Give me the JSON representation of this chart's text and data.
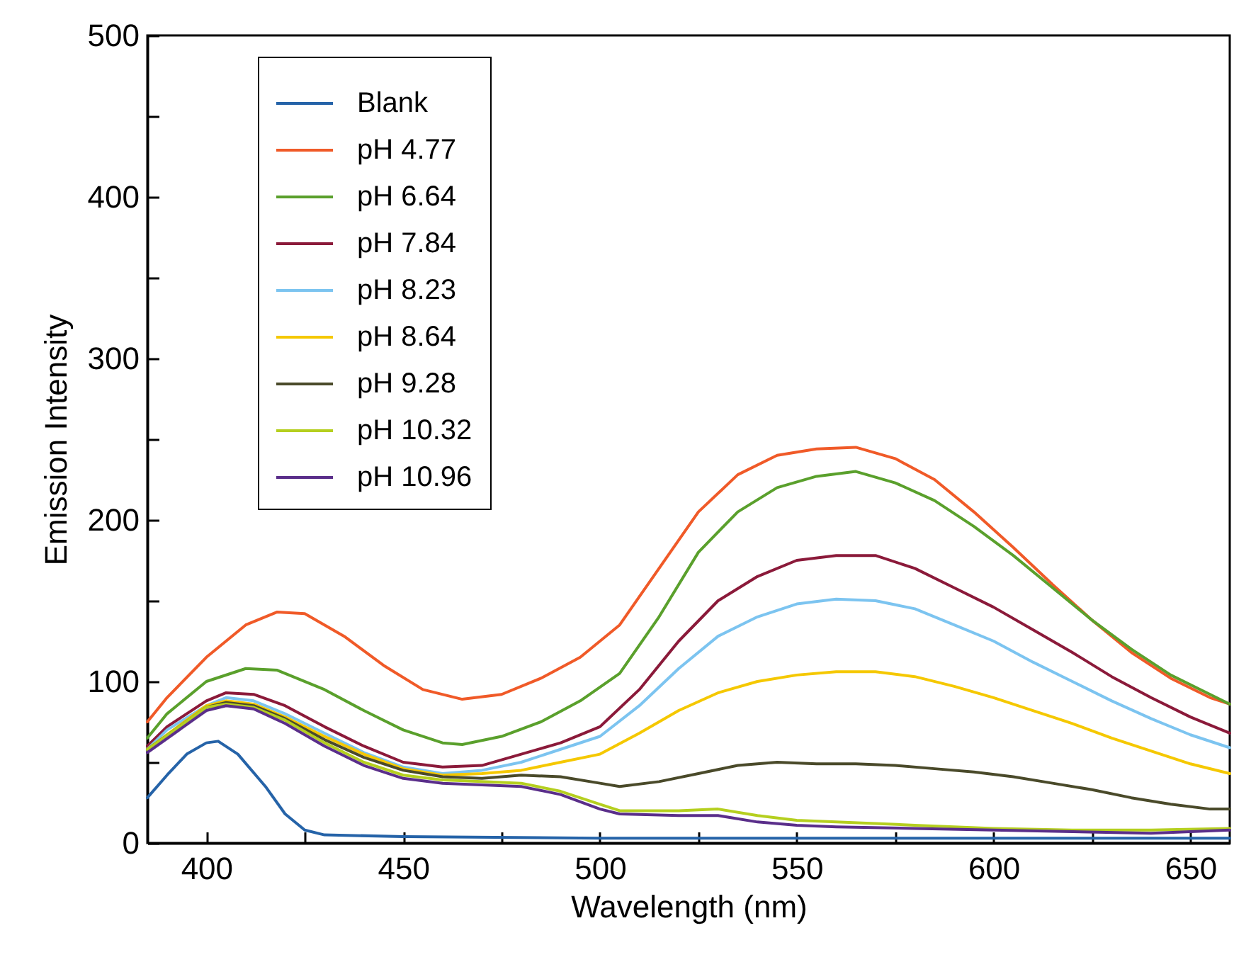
{
  "chart_data": {
    "type": "line",
    "xlabel": "Wavelength (nm)",
    "ylabel": "Emission Intensity",
    "xlim": [
      385,
      660
    ],
    "ylim": [
      0,
      500
    ],
    "xticks": [
      400,
      {
        "value": 425,
        "label": null
      },
      450,
      {
        "value": 475,
        "label": null
      },
      500,
      {
        "value": 525,
        "label": null
      },
      550,
      {
        "value": 575,
        "label": null
      },
      600,
      {
        "value": 625,
        "label": null
      },
      650
    ],
    "yticks": [
      0,
      {
        "value": 50,
        "label": null
      },
      100,
      {
        "value": 150,
        "label": null
      },
      200,
      {
        "value": 250,
        "label": null
      },
      300,
      {
        "value": 350,
        "label": null
      },
      400,
      {
        "value": 450,
        "label": null
      },
      500
    ],
    "legend": "top left",
    "marker": "none",
    "line_style": "solid",
    "series": [
      {
        "name": "Blank",
        "color": "#2563a8",
        "x": [
          385,
          390,
          395,
          400,
          403,
          408,
          415,
          420,
          425,
          430,
          450,
          500,
          550,
          600,
          660
        ],
        "values": [
          28,
          42,
          55,
          62,
          63,
          55,
          35,
          18,
          8,
          5,
          4,
          3,
          3,
          3,
          3
        ]
      },
      {
        "name": "pH 4.77",
        "color": "#f05a28",
        "x": [
          385,
          390,
          400,
          410,
          418,
          425,
          435,
          445,
          455,
          465,
          475,
          485,
          495,
          505,
          515,
          525,
          535,
          545,
          555,
          565,
          575,
          585,
          595,
          605,
          615,
          625,
          635,
          645,
          655,
          660
        ],
        "values": [
          75,
          90,
          115,
          135,
          143,
          142,
          128,
          110,
          95,
          89,
          92,
          102,
          115,
          135,
          170,
          205,
          228,
          240,
          244,
          245,
          238,
          225,
          205,
          183,
          160,
          138,
          118,
          102,
          90,
          86
        ]
      },
      {
        "name": "pH 6.64",
        "color": "#5aa02c",
        "x": [
          385,
          390,
          400,
          410,
          418,
          430,
          440,
          450,
          460,
          465,
          475,
          485,
          495,
          505,
          515,
          525,
          535,
          545,
          555,
          565,
          575,
          585,
          595,
          605,
          615,
          625,
          635,
          645,
          655,
          660
        ],
        "values": [
          65,
          80,
          100,
          108,
          107,
          95,
          82,
          70,
          62,
          61,
          66,
          75,
          88,
          105,
          140,
          180,
          205,
          220,
          227,
          230,
          223,
          212,
          196,
          178,
          158,
          138,
          120,
          104,
          92,
          86
        ]
      },
      {
        "name": "pH 7.84",
        "color": "#8b1a3a",
        "x": [
          385,
          390,
          400,
          405,
          412,
          420,
          430,
          440,
          450,
          460,
          470,
          480,
          490,
          500,
          510,
          520,
          530,
          540,
          550,
          560,
          570,
          580,
          590,
          600,
          610,
          620,
          630,
          640,
          650,
          660
        ],
        "values": [
          60,
          72,
          88,
          93,
          92,
          85,
          72,
          60,
          50,
          47,
          48,
          55,
          62,
          72,
          95,
          125,
          150,
          165,
          175,
          178,
          178,
          170,
          158,
          146,
          132,
          118,
          103,
          90,
          78,
          68
        ]
      },
      {
        "name": "pH 8.23",
        "color": "#7cc4f0",
        "x": [
          385,
          390,
          400,
          405,
          412,
          420,
          430,
          440,
          450,
          460,
          470,
          480,
          490,
          500,
          510,
          520,
          530,
          540,
          550,
          560,
          570,
          580,
          590,
          600,
          610,
          620,
          630,
          640,
          650,
          660
        ],
        "values": [
          58,
          70,
          85,
          90,
          88,
          80,
          68,
          56,
          47,
          43,
          45,
          50,
          58,
          66,
          85,
          108,
          128,
          140,
          148,
          151,
          150,
          145,
          135,
          125,
          112,
          100,
          88,
          77,
          67,
          59
        ]
      },
      {
        "name": "pH 8.64",
        "color": "#f5c800",
        "x": [
          385,
          400,
          405,
          412,
          420,
          430,
          440,
          450,
          460,
          470,
          480,
          490,
          500,
          510,
          520,
          530,
          540,
          550,
          560,
          570,
          580,
          590,
          600,
          610,
          620,
          630,
          640,
          650,
          660
        ],
        "values": [
          58,
          85,
          88,
          86,
          78,
          66,
          55,
          46,
          42,
          43,
          45,
          50,
          55,
          68,
          82,
          93,
          100,
          104,
          106,
          106,
          103,
          97,
          90,
          82,
          74,
          65,
          57,
          49,
          43
        ]
      },
      {
        "name": "pH 9.28",
        "color": "#4a4a2a",
        "x": [
          385,
          400,
          405,
          412,
          420,
          430,
          440,
          450,
          460,
          470,
          480,
          490,
          500,
          505,
          515,
          525,
          535,
          545,
          555,
          565,
          575,
          585,
          595,
          605,
          615,
          625,
          635,
          645,
          655,
          660
        ],
        "values": [
          58,
          84,
          87,
          85,
          77,
          64,
          53,
          45,
          41,
          40,
          42,
          41,
          37,
          35,
          38,
          43,
          48,
          50,
          49,
          49,
          48,
          46,
          44,
          41,
          37,
          33,
          28,
          24,
          21,
          21
        ]
      },
      {
        "name": "pH 10.32",
        "color": "#b5cf1f",
        "x": [
          385,
          400,
          405,
          412,
          420,
          430,
          440,
          450,
          460,
          470,
          480,
          490,
          500,
          505,
          520,
          530,
          540,
          550,
          560,
          580,
          600,
          620,
          640,
          660
        ],
        "values": [
          58,
          84,
          86,
          84,
          76,
          62,
          50,
          42,
          39,
          38,
          37,
          32,
          24,
          20,
          20,
          21,
          17,
          14,
          13,
          11,
          9,
          8,
          8,
          9
        ]
      },
      {
        "name": "pH 10.96",
        "color": "#5a2e8a",
        "x": [
          385,
          400,
          405,
          412,
          420,
          430,
          440,
          450,
          460,
          470,
          480,
          490,
          500,
          505,
          520,
          530,
          540,
          550,
          560,
          580,
          600,
          620,
          640,
          660
        ],
        "values": [
          56,
          82,
          85,
          83,
          74,
          60,
          48,
          40,
          37,
          36,
          35,
          30,
          21,
          18,
          17,
          17,
          13,
          11,
          10,
          9,
          8,
          7,
          6,
          8
        ]
      }
    ]
  }
}
